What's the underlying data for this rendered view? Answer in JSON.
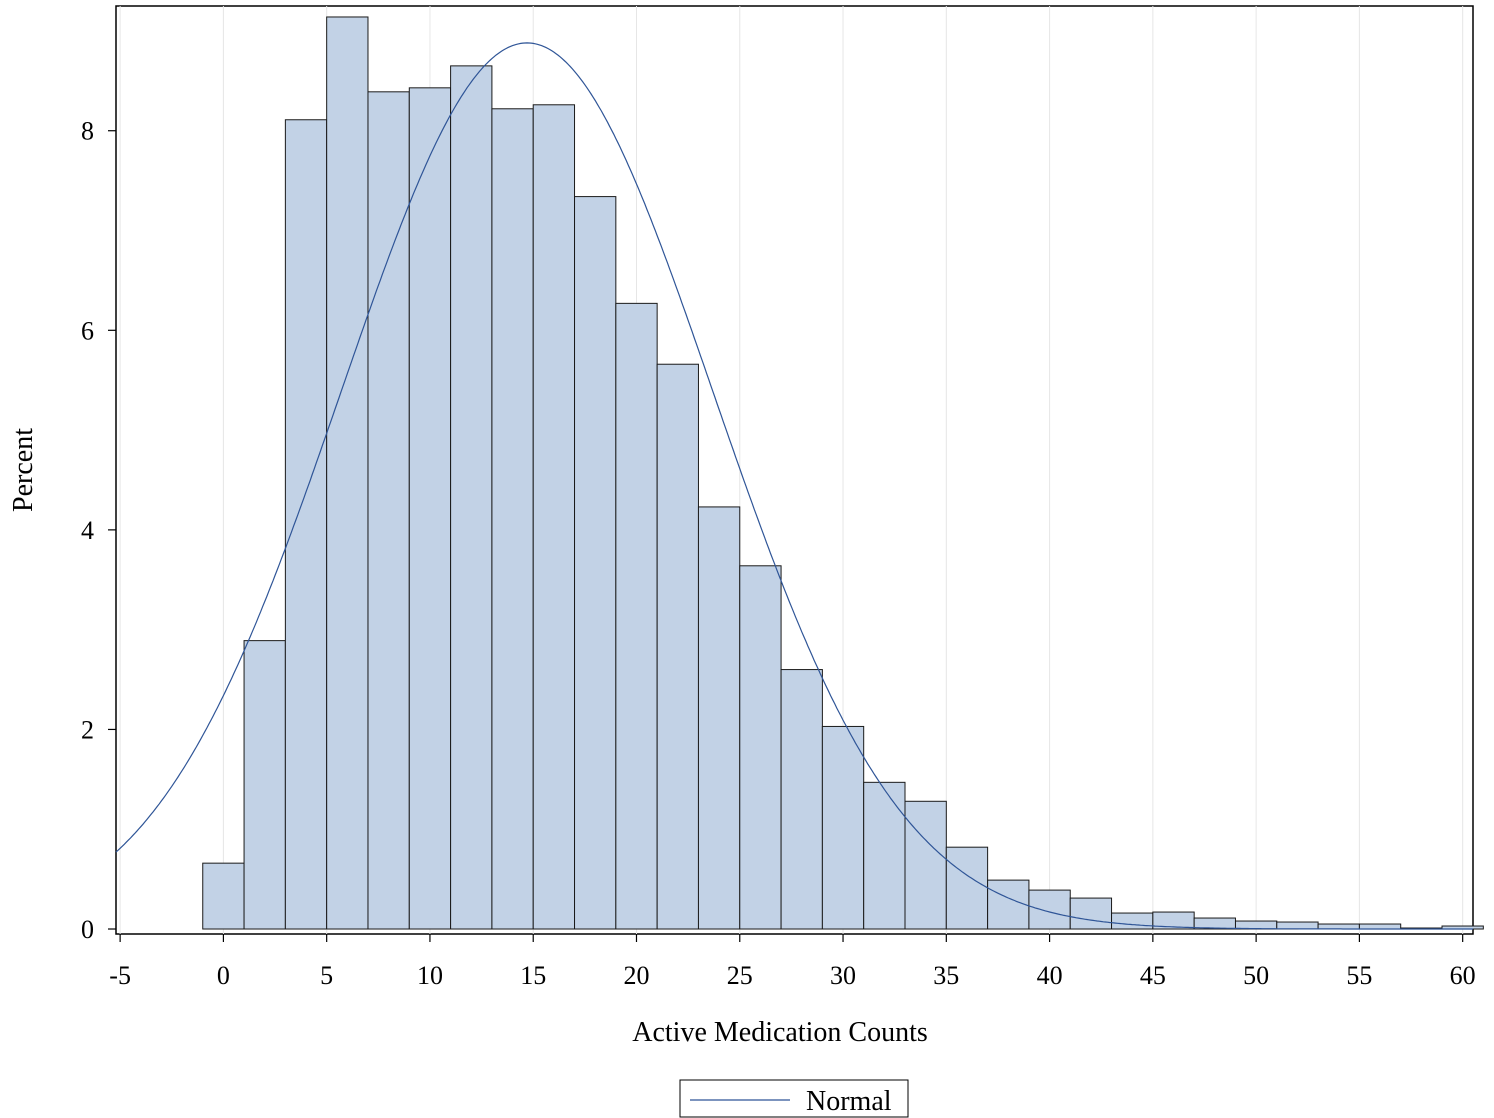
{
  "chart_data": {
    "type": "bar",
    "subtype": "histogram-with-normal-curve",
    "xlabel": "Active Medication Counts",
    "ylabel": "Percent",
    "xlim": [
      -5.2,
      60.5
    ],
    "ylim": [
      -0.05,
      9.25
    ],
    "x_ticks": [
      -5,
      0,
      5,
      10,
      15,
      20,
      25,
      30,
      35,
      40,
      45,
      50,
      55,
      60
    ],
    "x_tick_labels": [
      "-5",
      "0",
      "5",
      "10",
      "15",
      "20",
      "25",
      "30",
      "35",
      "40",
      "45",
      "50",
      "55",
      "60"
    ],
    "y_ticks": [
      0,
      2,
      4,
      6,
      8
    ],
    "y_tick_labels": [
      "0",
      "2",
      "4",
      "6",
      "8"
    ],
    "grid": "vertical",
    "bin_width": 2,
    "bins": [
      {
        "x": 0,
        "value": 0.66
      },
      {
        "x": 2,
        "value": 2.89
      },
      {
        "x": 4,
        "value": 8.11
      },
      {
        "x": 6,
        "value": 9.14
      },
      {
        "x": 8,
        "value": 8.39
      },
      {
        "x": 10,
        "value": 8.43
      },
      {
        "x": 12,
        "value": 8.65
      },
      {
        "x": 14,
        "value": 8.22
      },
      {
        "x": 16,
        "value": 8.26
      },
      {
        "x": 18,
        "value": 7.34
      },
      {
        "x": 20,
        "value": 6.27
      },
      {
        "x": 22,
        "value": 5.66
      },
      {
        "x": 24,
        "value": 4.23
      },
      {
        "x": 26,
        "value": 3.64
      },
      {
        "x": 28,
        "value": 2.6
      },
      {
        "x": 30,
        "value": 2.03
      },
      {
        "x": 32,
        "value": 1.47
      },
      {
        "x": 34,
        "value": 1.28
      },
      {
        "x": 36,
        "value": 0.82
      },
      {
        "x": 38,
        "value": 0.49
      },
      {
        "x": 40,
        "value": 0.39
      },
      {
        "x": 42,
        "value": 0.31
      },
      {
        "x": 44,
        "value": 0.16
      },
      {
        "x": 46,
        "value": 0.17
      },
      {
        "x": 48,
        "value": 0.11
      },
      {
        "x": 50,
        "value": 0.08
      },
      {
        "x": 52,
        "value": 0.07
      },
      {
        "x": 54,
        "value": 0.05
      },
      {
        "x": 56,
        "value": 0.05
      },
      {
        "x": 58,
        "value": 0.01
      },
      {
        "x": 60,
        "value": 0.03
      }
    ],
    "normal_curve": {
      "name": "Normal",
      "mean": 14.7,
      "sd": 9.0,
      "peak_percent": 8.88
    },
    "legend": {
      "position": "bottom-center",
      "entries": [
        "Normal"
      ]
    },
    "colors": {
      "bar_fill": "#c2d2e6",
      "bar_stroke": "#1a1a1a",
      "curve": "#2f5597",
      "grid": "#e6e6e6",
      "axis": "#000000"
    }
  }
}
